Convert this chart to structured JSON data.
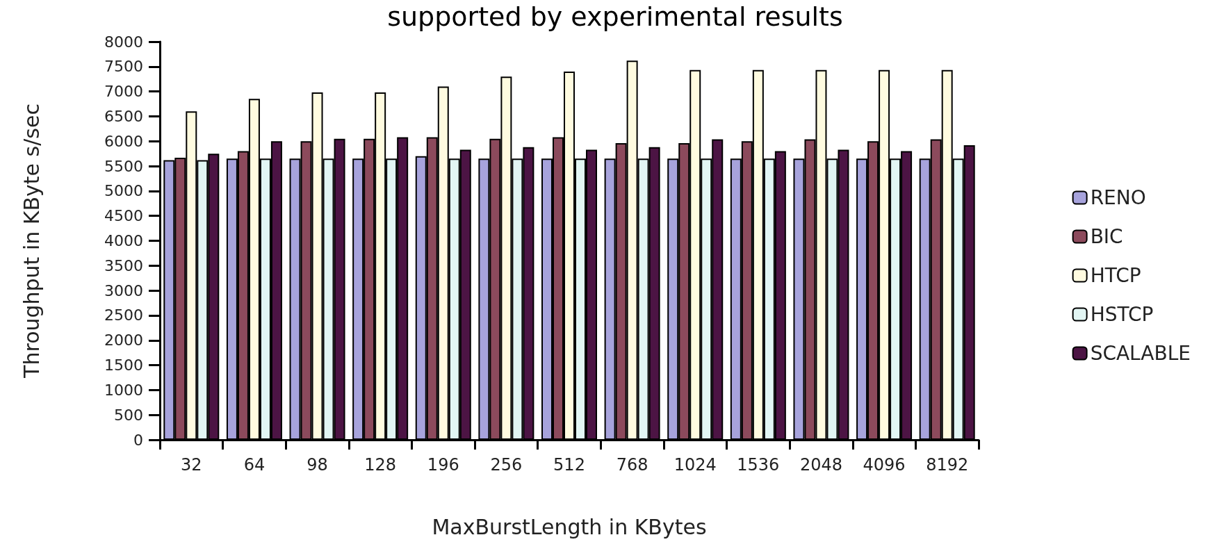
{
  "chart_data": {
    "type": "bar",
    "title": "supported by experimental results",
    "xlabel": "MaxBurstLength in KBytes",
    "ylabel": "Throughput in KByte s/sec",
    "categories": [
      "32",
      "64",
      "98",
      "128",
      "196",
      "256",
      "512",
      "768",
      "1024",
      "1536",
      "2048",
      "4096",
      "8192"
    ],
    "series": [
      {
        "name": "RENO",
        "color": "#a7a3dc",
        "values": [
          5620,
          5650,
          5650,
          5650,
          5700,
          5650,
          5650,
          5650,
          5650,
          5650,
          5650,
          5650,
          5650
        ]
      },
      {
        "name": "BIC",
        "color": "#8c4a5c",
        "values": [
          5670,
          5800,
          6000,
          6050,
          6080,
          6050,
          6080,
          5960,
          5960,
          6000,
          6040,
          6000,
          6040
        ]
      },
      {
        "name": "HTCP",
        "color": "#fffbe0",
        "values": [
          6600,
          6850,
          6980,
          6980,
          7100,
          7300,
          7400,
          7620,
          7430,
          7430,
          7430,
          7430,
          7430
        ]
      },
      {
        "name": "HSTCP",
        "color": "#e2f6f4",
        "values": [
          5620,
          5650,
          5650,
          5650,
          5650,
          5650,
          5650,
          5650,
          5650,
          5650,
          5650,
          5650,
          5650
        ]
      },
      {
        "name": "SCALABLE",
        "color": "#4c1444",
        "values": [
          5750,
          6000,
          6050,
          6080,
          5830,
          5880,
          5830,
          5880,
          6040,
          5800,
          5830,
          5800,
          5920
        ]
      }
    ],
    "ylim": [
      0,
      8000
    ],
    "yticks": [
      0,
      500,
      1000,
      1500,
      2000,
      2500,
      3000,
      3500,
      4000,
      4500,
      5000,
      5500,
      6000,
      6500,
      7000,
      7500,
      8000
    ],
    "grid": false,
    "legend": "right"
  }
}
